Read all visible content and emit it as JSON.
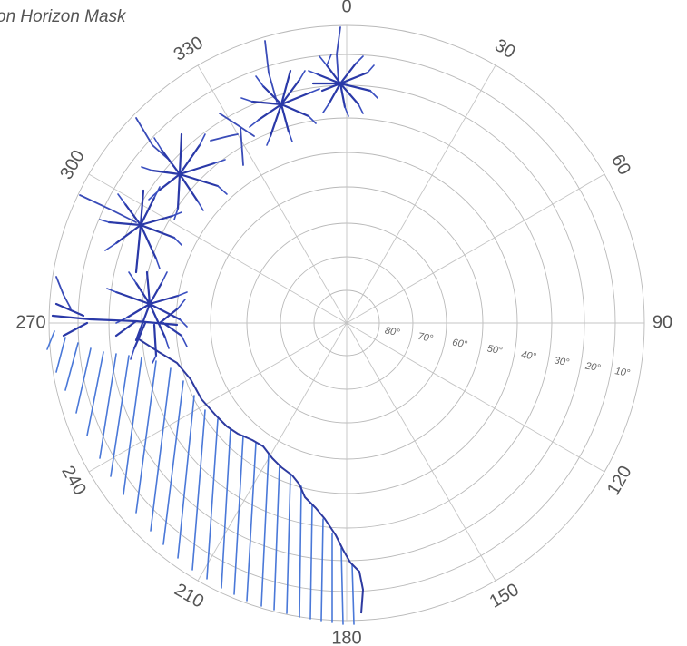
{
  "title": "on Horizon Mask",
  "azimuth_labels": [
    "0",
    "30",
    "60",
    "90",
    "120",
    "150",
    "180",
    "210",
    "240",
    "270",
    "300",
    "330"
  ],
  "elevation_labels": [
    "80°",
    "70°",
    "60°",
    "50°",
    "40°",
    "30°",
    "20°",
    "10°"
  ],
  "colors": {
    "grid": "#b9b9b9",
    "ink": "#2a39a8",
    "hatch": "#4a78d8",
    "label": "#555555"
  },
  "annotations": {
    "trees": [
      "tree-0",
      "tree-335",
      "tree-310",
      "tree-295",
      "tree-280",
      "tree-270"
    ],
    "mask_region": "hatched ground mask 185-270 azimuth"
  }
}
